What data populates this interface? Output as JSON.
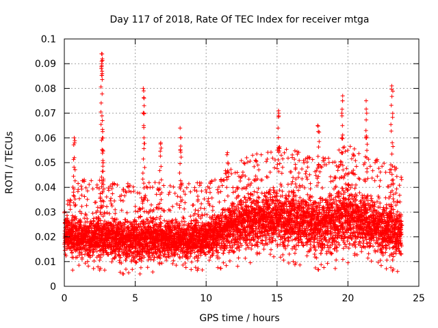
{
  "chart_data": {
    "type": "scatter",
    "title": "Day 117 of 2018, Rate Of TEC Index for receiver mtga",
    "xlabel": "GPS time / hours",
    "ylabel": "ROTI / TECUs",
    "xlim": [
      0,
      25
    ],
    "ylim": [
      0,
      0.1
    ],
    "xticks": [
      0,
      5,
      10,
      15,
      20,
      25
    ],
    "xtick_labels": [
      "0",
      "5",
      "10",
      "15",
      "20",
      "25"
    ],
    "yticks": [
      0,
      0.01,
      0.02,
      0.03,
      0.04,
      0.05,
      0.06,
      0.07,
      0.08,
      0.09,
      0.1
    ],
    "ytick_labels": [
      "0",
      "0.01",
      "0.02",
      "0.03",
      "0.04",
      "0.05",
      "0.06",
      "0.07",
      "0.08",
      "0.09",
      "0.1"
    ],
    "grid": true,
    "marker": "+",
    "color": "#ff0000",
    "series": [
      {
        "name": "ROTI",
        "x_range": [
          0,
          23.8
        ],
        "baseline_band": [
          [
            0,
            0.01,
            0.032
          ],
          [
            5,
            0.008,
            0.03
          ],
          [
            10,
            0.009,
            0.03
          ],
          [
            12,
            0.012,
            0.038
          ],
          [
            15,
            0.012,
            0.045
          ],
          [
            18,
            0.01,
            0.04
          ],
          [
            20,
            0.012,
            0.045
          ],
          [
            23.8,
            0.008,
            0.035
          ]
        ],
        "spikes": [
          {
            "x": 0.7,
            "values": [
              0.06,
              0.058,
              0.052
            ]
          },
          {
            "x": 2.65,
            "values": [
              0.094,
              0.092,
              0.091,
              0.09,
              0.088,
              0.086
            ]
          },
          {
            "x": 2.7,
            "values": [
              0.067,
              0.06,
              0.055,
              0.05
            ]
          },
          {
            "x": 5.6,
            "values": [
              0.08,
              0.079,
              0.073,
              0.07,
              0.065,
              0.06
            ]
          },
          {
            "x": 6.8,
            "values": [
              0.058
            ]
          },
          {
            "x": 8.2,
            "values": [
              0.064,
              0.06,
              0.055
            ]
          },
          {
            "x": 11.5,
            "values": [
              0.054,
              0.05
            ]
          },
          {
            "x": 15.1,
            "values": [
              0.071,
              0.07,
              0.064,
              0.056
            ]
          },
          {
            "x": 17.9,
            "values": [
              0.065
            ]
          },
          {
            "x": 19.6,
            "values": [
              0.077,
              0.075,
              0.07,
              0.065,
              0.06
            ]
          },
          {
            "x": 21.3,
            "values": [
              0.075,
              0.07,
              0.063,
              0.06
            ]
          },
          {
            "x": 23.1,
            "values": [
              0.081
            ]
          }
        ]
      }
    ]
  }
}
